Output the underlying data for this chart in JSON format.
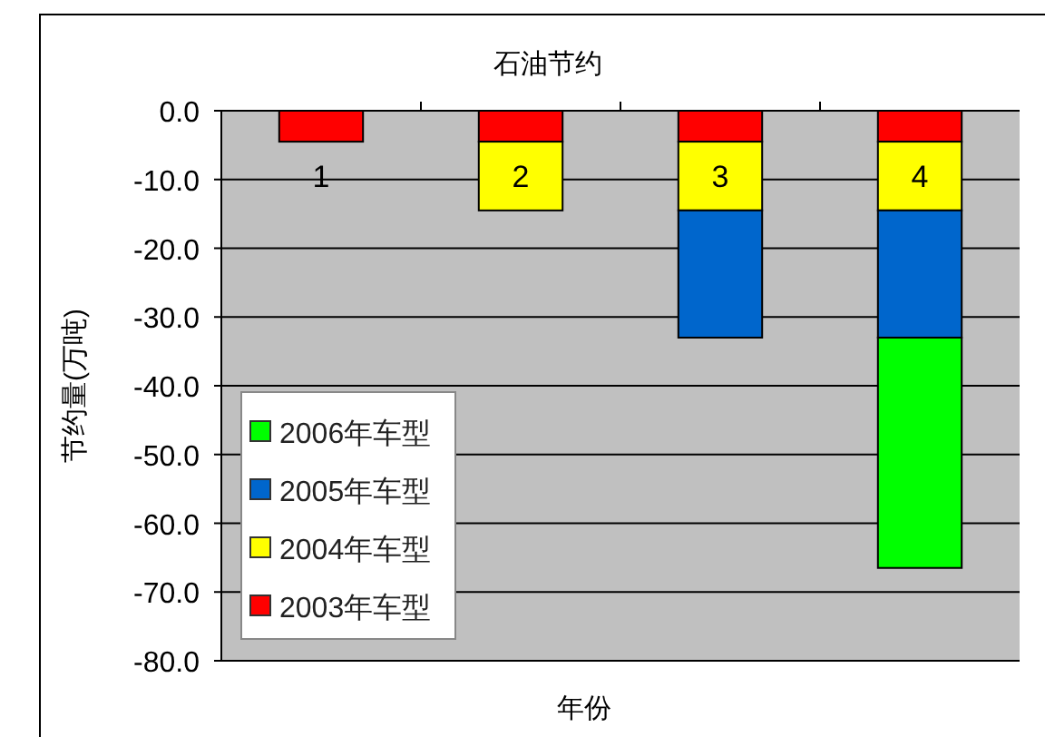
{
  "chart_data": {
    "type": "bar",
    "stacked": true,
    "title": "石油节约",
    "xlabel": "年份",
    "ylabel": "节约量(万吨)",
    "categories": [
      "1",
      "2",
      "3",
      "4"
    ],
    "series": [
      {
        "name": "2003年车型",
        "color": "#ff0000",
        "values": [
          -4.5,
          -4.5,
          -4.5,
          -4.5
        ]
      },
      {
        "name": "2004年车型",
        "color": "#ffff00",
        "values": [
          null,
          -10,
          -10,
          -10
        ]
      },
      {
        "name": "2005年车型",
        "color": "#0066cc",
        "values": [
          null,
          null,
          -18.5,
          -18.5
        ]
      },
      {
        "name": "2006年车型",
        "color": "#00ff00",
        "values": [
          null,
          null,
          null,
          -33.5
        ]
      }
    ],
    "ylim": [
      -80,
      0
    ],
    "yticks": [
      {
        "value": 0,
        "label": "0.0"
      },
      {
        "value": -10,
        "label": "-10.0"
      },
      {
        "value": -20,
        "label": "-20.0"
      },
      {
        "value": -30,
        "label": "-30.0"
      },
      {
        "value": -40,
        "label": "-40.0"
      },
      {
        "value": -50,
        "label": "-50.0"
      },
      {
        "value": -60,
        "label": "-60.0"
      },
      {
        "value": -70,
        "label": "-70.0"
      },
      {
        "value": -80,
        "label": "-80.0"
      }
    ],
    "grid": "y",
    "legend": "bottom left"
  }
}
